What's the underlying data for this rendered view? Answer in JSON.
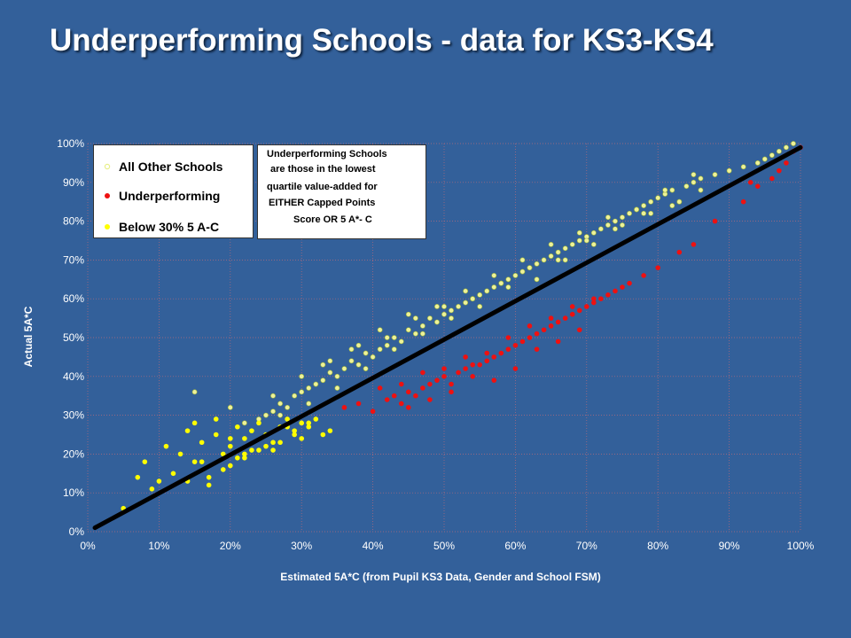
{
  "slide": {
    "title": "Underperforming Schools - data for KS3-KS4"
  },
  "legend": {
    "items": [
      {
        "label": "All Other Schools",
        "marker": "hollow-circle",
        "color": "#e8ef8a"
      },
      {
        "label": "Underperforming",
        "marker": "dot",
        "color": "#ee1111"
      },
      {
        "label": "Below 30% 5 A-C",
        "marker": "dot",
        "color": "#ffff00"
      }
    ]
  },
  "note": {
    "lines": [
      "Underperforming Schools",
      "are those  in the lowest",
      "quartile value-added for",
      "EITHER Capped Points",
      "Score OR 5 A*- C"
    ]
  },
  "chart_data": {
    "type": "scatter",
    "xlabel": "Estimated 5A*C (from Pupil KS3 Data, Gender and School FSM)",
    "ylabel": "Actual 5A*C",
    "xlim": [
      0,
      100
    ],
    "ylim": [
      0,
      100
    ],
    "x_ticks": [
      "0%",
      "10%",
      "20%",
      "30%",
      "40%",
      "50%",
      "60%",
      "70%",
      "80%",
      "90%",
      "100%"
    ],
    "y_ticks": [
      "0%",
      "10%",
      "20%",
      "30%",
      "40%",
      "50%",
      "60%",
      "70%",
      "80%",
      "90%",
      "100%"
    ],
    "grid": true,
    "legend_position": "top-left",
    "colors": {
      "all_other": "#eef29a",
      "all_other_edge": "#9fb53a",
      "underperforming": "#ee1111",
      "below30": "#ffff00",
      "trend_line": "#000000"
    },
    "trend_line": {
      "x": [
        1,
        100
      ],
      "y": [
        1,
        99
      ]
    },
    "series": [
      {
        "name": "All Other Schools",
        "x": [
          22,
          24,
          25,
          26,
          27,
          28,
          29,
          30,
          31,
          32,
          33,
          34,
          35,
          36,
          37,
          38,
          39,
          40,
          41,
          42,
          43,
          44,
          45,
          46,
          47,
          48,
          49,
          50,
          51,
          52,
          53,
          54,
          55,
          56,
          57,
          58,
          59,
          60,
          61,
          62,
          63,
          64,
          65,
          66,
          67,
          68,
          69,
          70,
          71,
          72,
          73,
          74,
          75,
          76,
          77,
          78,
          79,
          80,
          81,
          82,
          83,
          84,
          85,
          86,
          88,
          90,
          92,
          94,
          95,
          96,
          97,
          98,
          99,
          15,
          20,
          26,
          30,
          34,
          38,
          42,
          46,
          50,
          54,
          58,
          62,
          66,
          70,
          74,
          78,
          82,
          86,
          27,
          31,
          35,
          39,
          43,
          47,
          51,
          55,
          59,
          63,
          67,
          71,
          75,
          79,
          83,
          33,
          37,
          41,
          45,
          49,
          53,
          57,
          61,
          65,
          69,
          73,
          77,
          81,
          85
        ],
        "y": [
          28,
          29,
          30,
          31,
          33,
          32,
          35,
          36,
          37,
          38,
          39,
          41,
          40,
          42,
          44,
          43,
          46,
          45,
          47,
          48,
          50,
          49,
          52,
          51,
          53,
          55,
          54,
          56,
          57,
          58,
          59,
          60,
          61,
          62,
          63,
          64,
          65,
          66,
          67,
          68,
          69,
          70,
          71,
          72,
          73,
          74,
          75,
          76,
          77,
          78,
          79,
          80,
          81,
          82,
          83,
          84,
          85,
          86,
          87,
          88,
          85,
          89,
          90,
          91,
          92,
          93,
          94,
          95,
          96,
          97,
          98,
          99,
          100,
          36,
          32,
          35,
          40,
          44,
          48,
          50,
          55,
          58,
          60,
          64,
          68,
          70,
          75,
          78,
          82,
          84,
          88,
          30,
          33,
          37,
          42,
          47,
          51,
          55,
          58,
          63,
          65,
          70,
          74,
          79,
          82,
          85,
          43,
          47,
          52,
          56,
          58,
          62,
          66,
          70,
          74,
          77,
          81,
          83,
          88,
          92
        ]
      },
      {
        "name": "Underperforming",
        "x": [
          36,
          38,
          40,
          42,
          43,
          44,
          45,
          46,
          47,
          48,
          49,
          50,
          51,
          52,
          53,
          54,
          55,
          56,
          57,
          58,
          59,
          60,
          61,
          62,
          63,
          64,
          65,
          66,
          67,
          68,
          69,
          70,
          71,
          72,
          73,
          74,
          75,
          76,
          78,
          80,
          83,
          85,
          88,
          92,
          93,
          94,
          96,
          97,
          98,
          99,
          100,
          41,
          44,
          47,
          50,
          53,
          56,
          59,
          62,
          65,
          68,
          71,
          45,
          48,
          51,
          54,
          57,
          60,
          63,
          66,
          69
        ],
        "y": [
          32,
          33,
          31,
          34,
          35,
          33,
          36,
          35,
          37,
          38,
          39,
          40,
          38,
          41,
          42,
          40,
          43,
          44,
          45,
          46,
          47,
          48,
          49,
          50,
          51,
          52,
          53,
          54,
          55,
          56,
          57,
          58,
          59,
          60,
          61,
          62,
          63,
          64,
          66,
          68,
          72,
          74,
          80,
          85,
          90,
          89,
          91,
          93,
          95,
          98,
          99,
          37,
          38,
          41,
          42,
          45,
          46,
          50,
          53,
          55,
          58,
          60,
          32,
          34,
          36,
          43,
          39,
          42,
          47,
          49,
          52
        ]
      },
      {
        "name": "Below 30% 5 A-C",
        "x": [
          5,
          7,
          8,
          9,
          10,
          11,
          12,
          13,
          14,
          15,
          15,
          16,
          17,
          18,
          18,
          19,
          20,
          20,
          21,
          22,
          22,
          23,
          24,
          24,
          25,
          26,
          27,
          28,
          29,
          30,
          30,
          31,
          32,
          33,
          34,
          16,
          19,
          21,
          23,
          25,
          27,
          29,
          31,
          14,
          17,
          20,
          22,
          26,
          28
        ],
        "y": [
          6,
          14,
          18,
          11,
          13,
          22,
          15,
          20,
          26,
          28,
          18,
          23,
          14,
          25,
          29,
          20,
          22,
          17,
          27,
          24,
          19,
          26,
          21,
          28,
          25,
          23,
          27,
          29,
          26,
          28,
          24,
          27,
          29,
          25,
          26,
          18,
          16,
          19,
          21,
          22,
          23,
          25,
          28,
          13,
          12,
          24,
          20,
          21,
          27
        ]
      }
    ]
  }
}
